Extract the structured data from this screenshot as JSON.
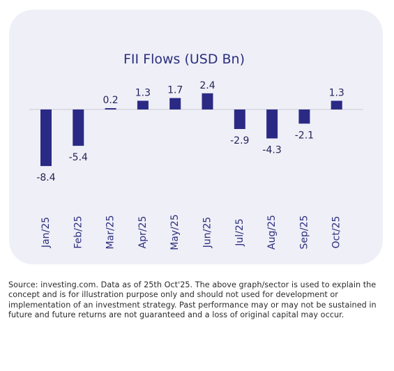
{
  "chart_data": {
    "type": "bar",
    "title": "FII Flows (USD Bn)",
    "categories": [
      "Jan/25",
      "Feb/25",
      "Mar/25",
      "Apr/25",
      "May/25",
      "Jun/25",
      "Jul/25",
      "Aug/25",
      "Sep/25",
      "Oct/25"
    ],
    "values": [
      -8.4,
      -5.4,
      0.2,
      1.3,
      1.7,
      2.4,
      -2.9,
      -4.3,
      -2.1,
      1.3
    ],
    "value_labels": [
      "-8.4",
      "-5.4",
      "0.2",
      "1.3",
      "1.7",
      "2.4",
      "-2.9",
      "-4.3",
      "-2.1",
      "1.3"
    ],
    "bar_color": "#2a2a85",
    "zero_line_color": "#c9c9d6",
    "grid": false,
    "legend": "none"
  },
  "footnote": "Source: investing.com. Data as of 25th Oct'25. The above graph/sector is used to explain the concept and is for illustration purpose only and should not used for development or implementation of an investment strategy. Past performance may or may not be sustained in future and future returns are not guaranteed and a loss of original capital may occur."
}
